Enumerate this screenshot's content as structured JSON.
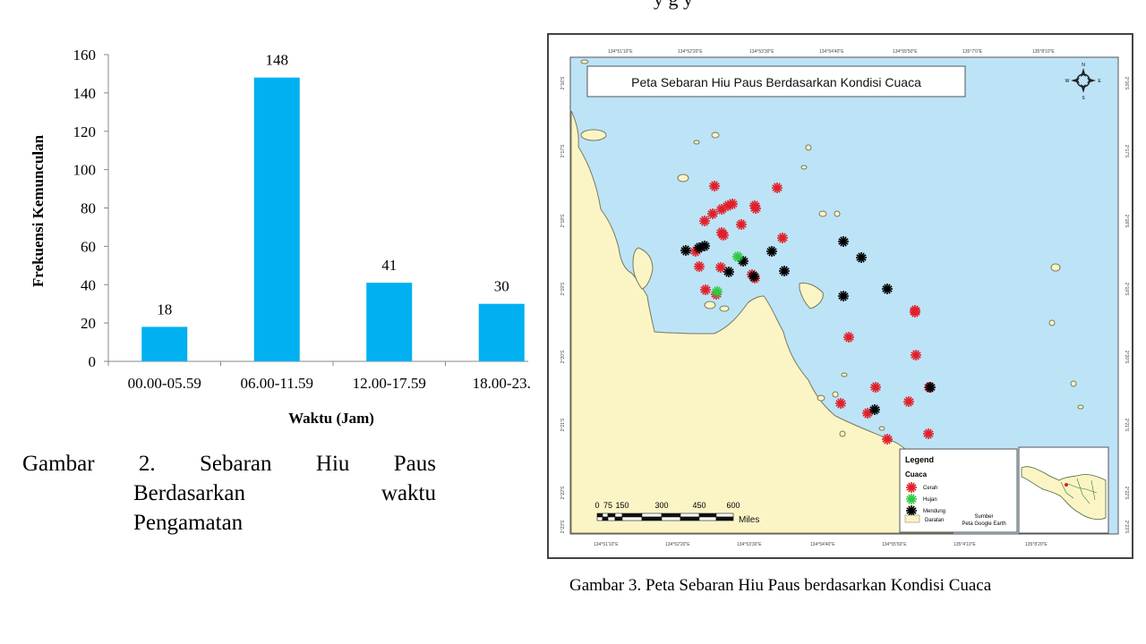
{
  "chart_data": {
    "type": "bar",
    "categories": [
      "00.00-05.59",
      "06.00-11.59",
      "12.00-17.59",
      "18.00-23."
    ],
    "values": [
      18,
      148,
      41,
      30
    ],
    "xlabel": "Waktu (Jam)",
    "ylabel": "Frekuensi Kemunculan",
    "ylim": [
      0,
      160
    ],
    "yticks": [
      0,
      20,
      40,
      60,
      80,
      100,
      120,
      140,
      160
    ],
    "bar_color": "#00b0f0",
    "grid": false
  },
  "caption_left": {
    "line1_w1": "Gambar",
    "line1_w2": "2.",
    "line1_w3": "Sebaran",
    "line1_w4": "Hiu",
    "line1_w5": "Paus",
    "line2_w1": "Berdasarkan",
    "line2_w2": "waktu",
    "line3": "Pengamatan"
  },
  "top_cut_text": "y g            y",
  "map": {
    "title": "Peta Sebaran Hiu Paus Berdasarkan Kondisi Cuaca",
    "top_lon_labels": [
      "134°51'10\"E",
      "134°52'20\"E",
      "134°53'30\"E",
      "134°54'40\"E",
      "134°55'50\"E",
      "135°7'0\"E",
      "135°8'10\"E"
    ],
    "bottom_lon_labels": [
      "134°51'10\"E",
      "134°52'20\"E",
      "134°53'30\"E",
      "134°54'40\"E",
      "134°55'50\"E",
      "135°4'10\"E",
      "135°8'20\"E"
    ],
    "lat_labels": [
      "2°16'S",
      "2°17'S",
      "2°18'S",
      "2°19'S",
      "2°20'S",
      "2°21'S",
      "2°22'S",
      "2°23'S"
    ],
    "compass": {
      "n": "N",
      "s": "S",
      "e": "E",
      "w": "W"
    },
    "legend": {
      "title": "Legend",
      "group": "Cuaca",
      "items": [
        {
          "label": "Cerah",
          "color": "#e0202a"
        },
        {
          "label": "Hujan",
          "color": "#2ecc40"
        },
        {
          "label": "Mendung",
          "color": "#000000"
        }
      ],
      "land_label": "Daratan",
      "source_label": "Sumber",
      "source_value": "Peta Google Earth"
    },
    "scale_ticks": [
      "0",
      "75",
      "150",
      "300",
      "450",
      "600"
    ],
    "scale_unit": "Miles",
    "colors": {
      "sea": "#bde3f7",
      "land": "#fbf5c6",
      "coast": "#7a7a5a"
    }
  },
  "caption_right": "Gambar 3. Peta Sebaran Hiu Paus berdasarkan Kondisi Cuaca"
}
